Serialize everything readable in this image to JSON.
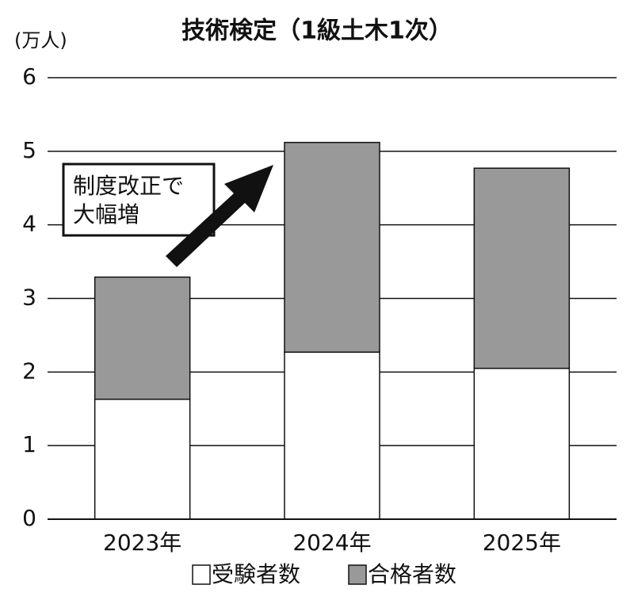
{
  "chart_data": {
    "type": "stacked_bar",
    "title": "技術検定（1級土木1次）",
    "y_label": "(万人)",
    "categories": [
      "2023年",
      "2024年",
      "2025年"
    ],
    "series": [
      {
        "name": "受験者数",
        "color": "#ffffff",
        "values": [
          1.63,
          2.27,
          2.05
        ]
      },
      {
        "name": "合格者数",
        "color": "#999999",
        "values": [
          1.66,
          2.85,
          2.72
        ]
      }
    ],
    "ylim": [
      0,
      6
    ],
    "yticks": [
      0,
      1,
      2,
      3,
      4,
      5,
      6
    ],
    "grid": true,
    "annotation": [
      "制度改正で",
      "大幅増"
    ]
  }
}
